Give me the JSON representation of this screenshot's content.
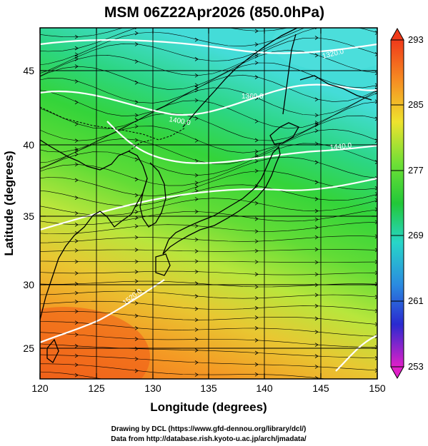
{
  "title": "MSM 06Z22Apr2026 (850.0hPa)",
  "xlabel": "Longitude (degrees)",
  "ylabel": "Latitude  (degrees)",
  "x_ticks": [
    "120",
    "125",
    "130",
    "135",
    "140",
    "145",
    "150"
  ],
  "y_ticks": [
    "25",
    "30",
    "35",
    "40",
    "45"
  ],
  "colorbar": {
    "ticks": [
      "293",
      "285",
      "277",
      "269",
      "261",
      "253"
    ],
    "min": 253,
    "max": 293
  },
  "contour_labels": [
    "1320.0",
    "1360.0",
    "1400.0",
    "1440.0",
    "1520.0"
  ],
  "credits": [
    "Drawing by DCL (https://www.gfd-dennou.org/library/dcl/)",
    "Data from http://database.rish.kyoto-u.ac.jp/arch/jmadata/"
  ],
  "map": {
    "lon_range": [
      120,
      150
    ],
    "lat_range": [
      22.5,
      47.5
    ],
    "field": "temperature (K) with streamlines and geopotential height contours"
  }
}
